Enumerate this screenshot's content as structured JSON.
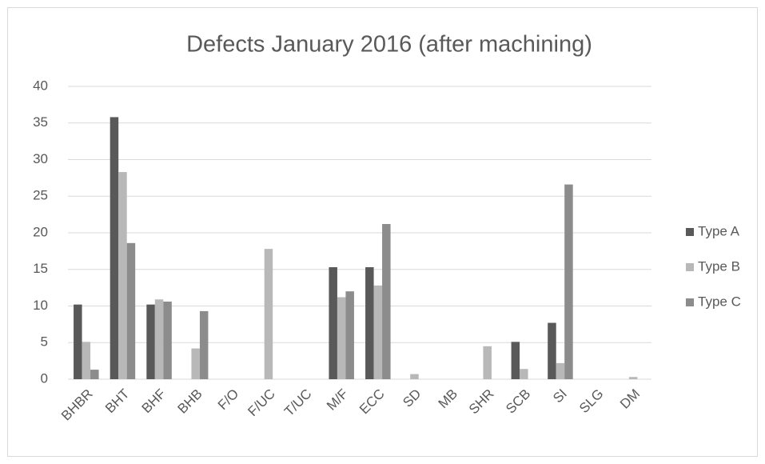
{
  "chart_data": {
    "type": "bar",
    "title": "Defects January 2016 (after machining)",
    "categories": [
      "BHBR",
      "BHT",
      "BHF",
      "BHB",
      "F/O",
      "F/UC",
      "T/UC",
      "M/F",
      "ECC",
      "SD",
      "MB",
      "SHR",
      "SCB",
      "SI",
      "SLG",
      "DM"
    ],
    "series": [
      {
        "name": "Type A",
        "color": "#595959",
        "values": [
          10.2,
          35.8,
          10.2,
          0,
          0,
          0,
          0,
          15.3,
          15.3,
          0,
          0,
          0,
          5.1,
          7.7,
          0,
          0
        ]
      },
      {
        "name": "Type B",
        "color": "#b8b8b8",
        "values": [
          5.1,
          28.3,
          10.9,
          4.2,
          0,
          17.8,
          0,
          11.2,
          12.8,
          0.7,
          0,
          4.5,
          1.4,
          2.2,
          0,
          0.3
        ]
      },
      {
        "name": "Type C",
        "color": "#8c8c8c",
        "values": [
          1.3,
          18.6,
          10.6,
          9.3,
          0,
          0,
          0,
          12.0,
          21.2,
          0,
          0,
          0,
          0,
          26.6,
          0,
          0
        ]
      }
    ],
    "ylim": [
      0,
      40
    ],
    "yticks": [
      0,
      5,
      10,
      15,
      20,
      25,
      30,
      35,
      40
    ],
    "grid": true,
    "legend": "right"
  }
}
